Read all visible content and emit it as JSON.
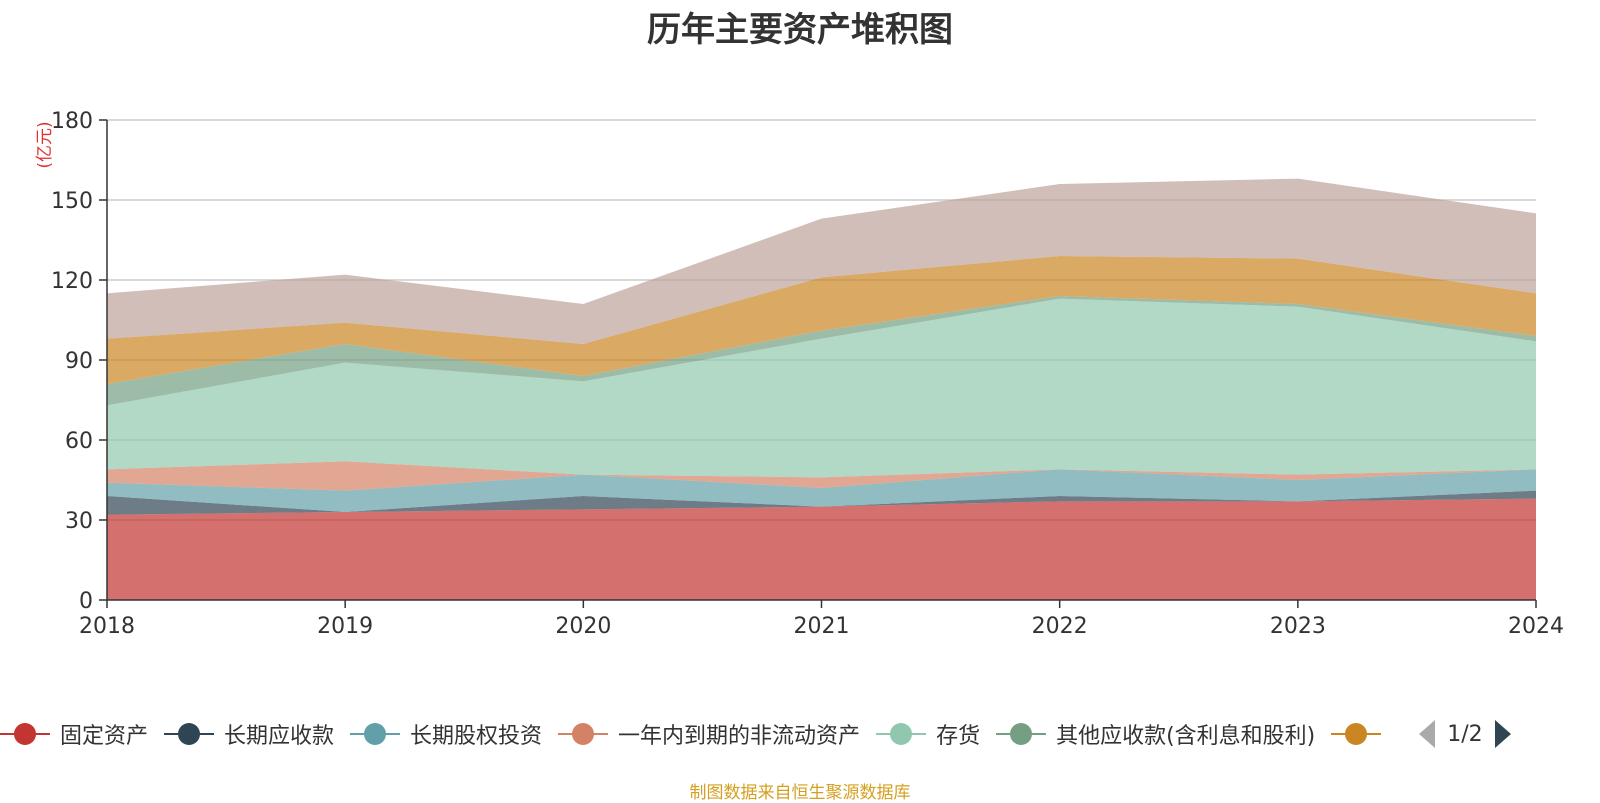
{
  "title": "历年主要资产堆积图",
  "source_note": "制图数据来自恒生聚源数据库",
  "legend_page": "1/2",
  "chart_data": {
    "type": "area",
    "stacked": true,
    "unit": "(亿元)",
    "categories": [
      "2018",
      "2019",
      "2020",
      "2021",
      "2022",
      "2023",
      "2024"
    ],
    "ylim": [
      0,
      180
    ],
    "yticks": [
      0,
      30,
      60,
      90,
      120,
      150,
      180
    ],
    "grid": true,
    "series": [
      {
        "name": "固定资产",
        "color": "#c23531",
        "values": [
          32,
          33,
          34,
          35,
          37,
          37,
          38
        ]
      },
      {
        "name": "长期应收款",
        "color": "#2f4554",
        "values": [
          7,
          0,
          5,
          0,
          2,
          0,
          3
        ]
      },
      {
        "name": "长期股权投资",
        "color": "#61a0a8",
        "values": [
          5,
          8,
          8,
          7,
          10,
          8,
          8
        ]
      },
      {
        "name": "一年内到期的非流动资产",
        "color": "#d48265",
        "values": [
          5,
          11,
          0,
          4,
          0,
          2,
          0
        ]
      },
      {
        "name": "存货",
        "color": "#91c7ae",
        "values": [
          24,
          37,
          35,
          52,
          64,
          63,
          48
        ]
      },
      {
        "name": "其他应收款(含利息和股利)",
        "color": "#749f83",
        "values": [
          8,
          7,
          2,
          3,
          1,
          1,
          2
        ]
      },
      {
        "name": "",
        "color": "#ca8622",
        "values": [
          17,
          8,
          12,
          20,
          15,
          17,
          16
        ]
      },
      {
        "name": "",
        "color": "#bda29a",
        "values": [
          17,
          18,
          15,
          22,
          27,
          30,
          30
        ]
      }
    ],
    "legend_position": "bottom"
  }
}
